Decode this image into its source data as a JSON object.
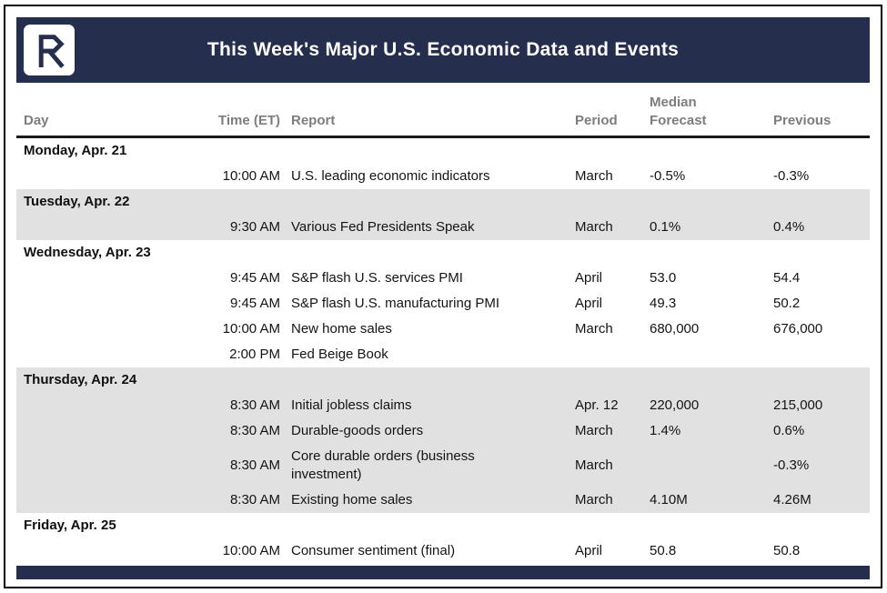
{
  "chart_data": {
    "type": "table",
    "title": "This Week's Major U.S. Economic Data and Events",
    "columns": [
      "Day",
      "Time (ET)",
      "Report",
      "Period",
      "Median Forecast",
      "Previous"
    ],
    "groups": [
      {
        "day": "Monday, Apr. 21",
        "shaded": false,
        "rows": [
          {
            "time": "10:00 AM",
            "report": "U.S. leading economic indicators",
            "period": "March",
            "forecast": "-0.5%",
            "previous": "-0.3%"
          }
        ]
      },
      {
        "day": "Tuesday, Apr. 22",
        "shaded": true,
        "rows": [
          {
            "time": "9:30 AM",
            "report": "Various Fed Presidents Speak",
            "period": "March",
            "forecast": "0.1%",
            "previous": "0.4%"
          }
        ]
      },
      {
        "day": "Wednesday, Apr. 23",
        "shaded": false,
        "rows": [
          {
            "time": "9:45 AM",
            "report": "S&P flash U.S. services PMI",
            "period": "April",
            "forecast": "53.0",
            "previous": "54.4"
          },
          {
            "time": "9:45 AM",
            "report": "S&P flash U.S. manufacturing PMI",
            "period": "April",
            "forecast": "49.3",
            "previous": "50.2"
          },
          {
            "time": "10:00 AM",
            "report": "New home sales",
            "period": "March",
            "forecast": "680,000",
            "previous": "676,000"
          },
          {
            "time": "2:00 PM",
            "report": "Fed Beige Book",
            "period": "",
            "forecast": "",
            "previous": ""
          }
        ]
      },
      {
        "day": "Thursday, Apr. 24",
        "shaded": true,
        "rows": [
          {
            "time": "8:30 AM",
            "report": "Initial jobless claims",
            "period": "Apr. 12",
            "forecast": "220,000",
            "previous": "215,000"
          },
          {
            "time": "8:30 AM",
            "report": "Durable-goods orders",
            "period": "March",
            "forecast": "1.4%",
            "previous": "0.6%"
          },
          {
            "time": "8:30 AM",
            "report": "Core durable orders (business\ninvestment)",
            "period": "March",
            "forecast": "",
            "previous": "-0.3%"
          },
          {
            "time": "8:30 AM",
            "report": "Existing home sales",
            "period": "March",
            "forecast": "4.10M",
            "previous": "4.26M"
          }
        ]
      },
      {
        "day": "Friday, Apr. 25",
        "shaded": false,
        "rows": [
          {
            "time": "10:00 AM",
            "report": "Consumer sentiment (final)",
            "period": "April",
            "forecast": "50.8",
            "previous": "50.8"
          }
        ]
      }
    ]
  },
  "logo": {
    "icon": "stylized-R-logo"
  },
  "colors": {
    "navy": "#262e4d",
    "shaded_row": "#e1e1e1",
    "header_text": "#7d7d7d"
  }
}
